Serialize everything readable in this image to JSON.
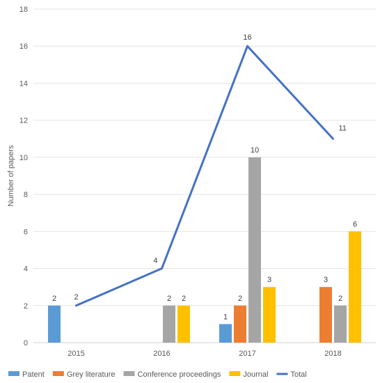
{
  "chart_data": {
    "type": "bar",
    "title": "",
    "xlabel": "",
    "ylabel": "Number of papers",
    "ylim": [
      0,
      18
    ],
    "yticks": [
      0,
      2,
      4,
      6,
      8,
      10,
      12,
      14,
      16,
      18
    ],
    "grid": true,
    "legend_position": "bottom",
    "categories": [
      "2015",
      "2016",
      "2017",
      "2018"
    ],
    "series": [
      {
        "name": "Patent",
        "type": "bar",
        "color": "#5B9BD5",
        "values": [
          2,
          0,
          1,
          0
        ]
      },
      {
        "name": "Grey literature",
        "type": "bar",
        "color": "#ED7D31",
        "values": [
          0,
          0,
          2,
          3
        ]
      },
      {
        "name": "Conference proceedings",
        "type": "bar",
        "color": "#A5A5A5",
        "values": [
          0,
          2,
          10,
          2
        ]
      },
      {
        "name": "Journal",
        "type": "bar",
        "color": "#FFC000",
        "values": [
          0,
          2,
          3,
          6
        ]
      },
      {
        "name": "Total",
        "type": "line",
        "color": "#4472C4",
        "values": [
          2,
          4,
          16,
          11
        ]
      }
    ]
  }
}
